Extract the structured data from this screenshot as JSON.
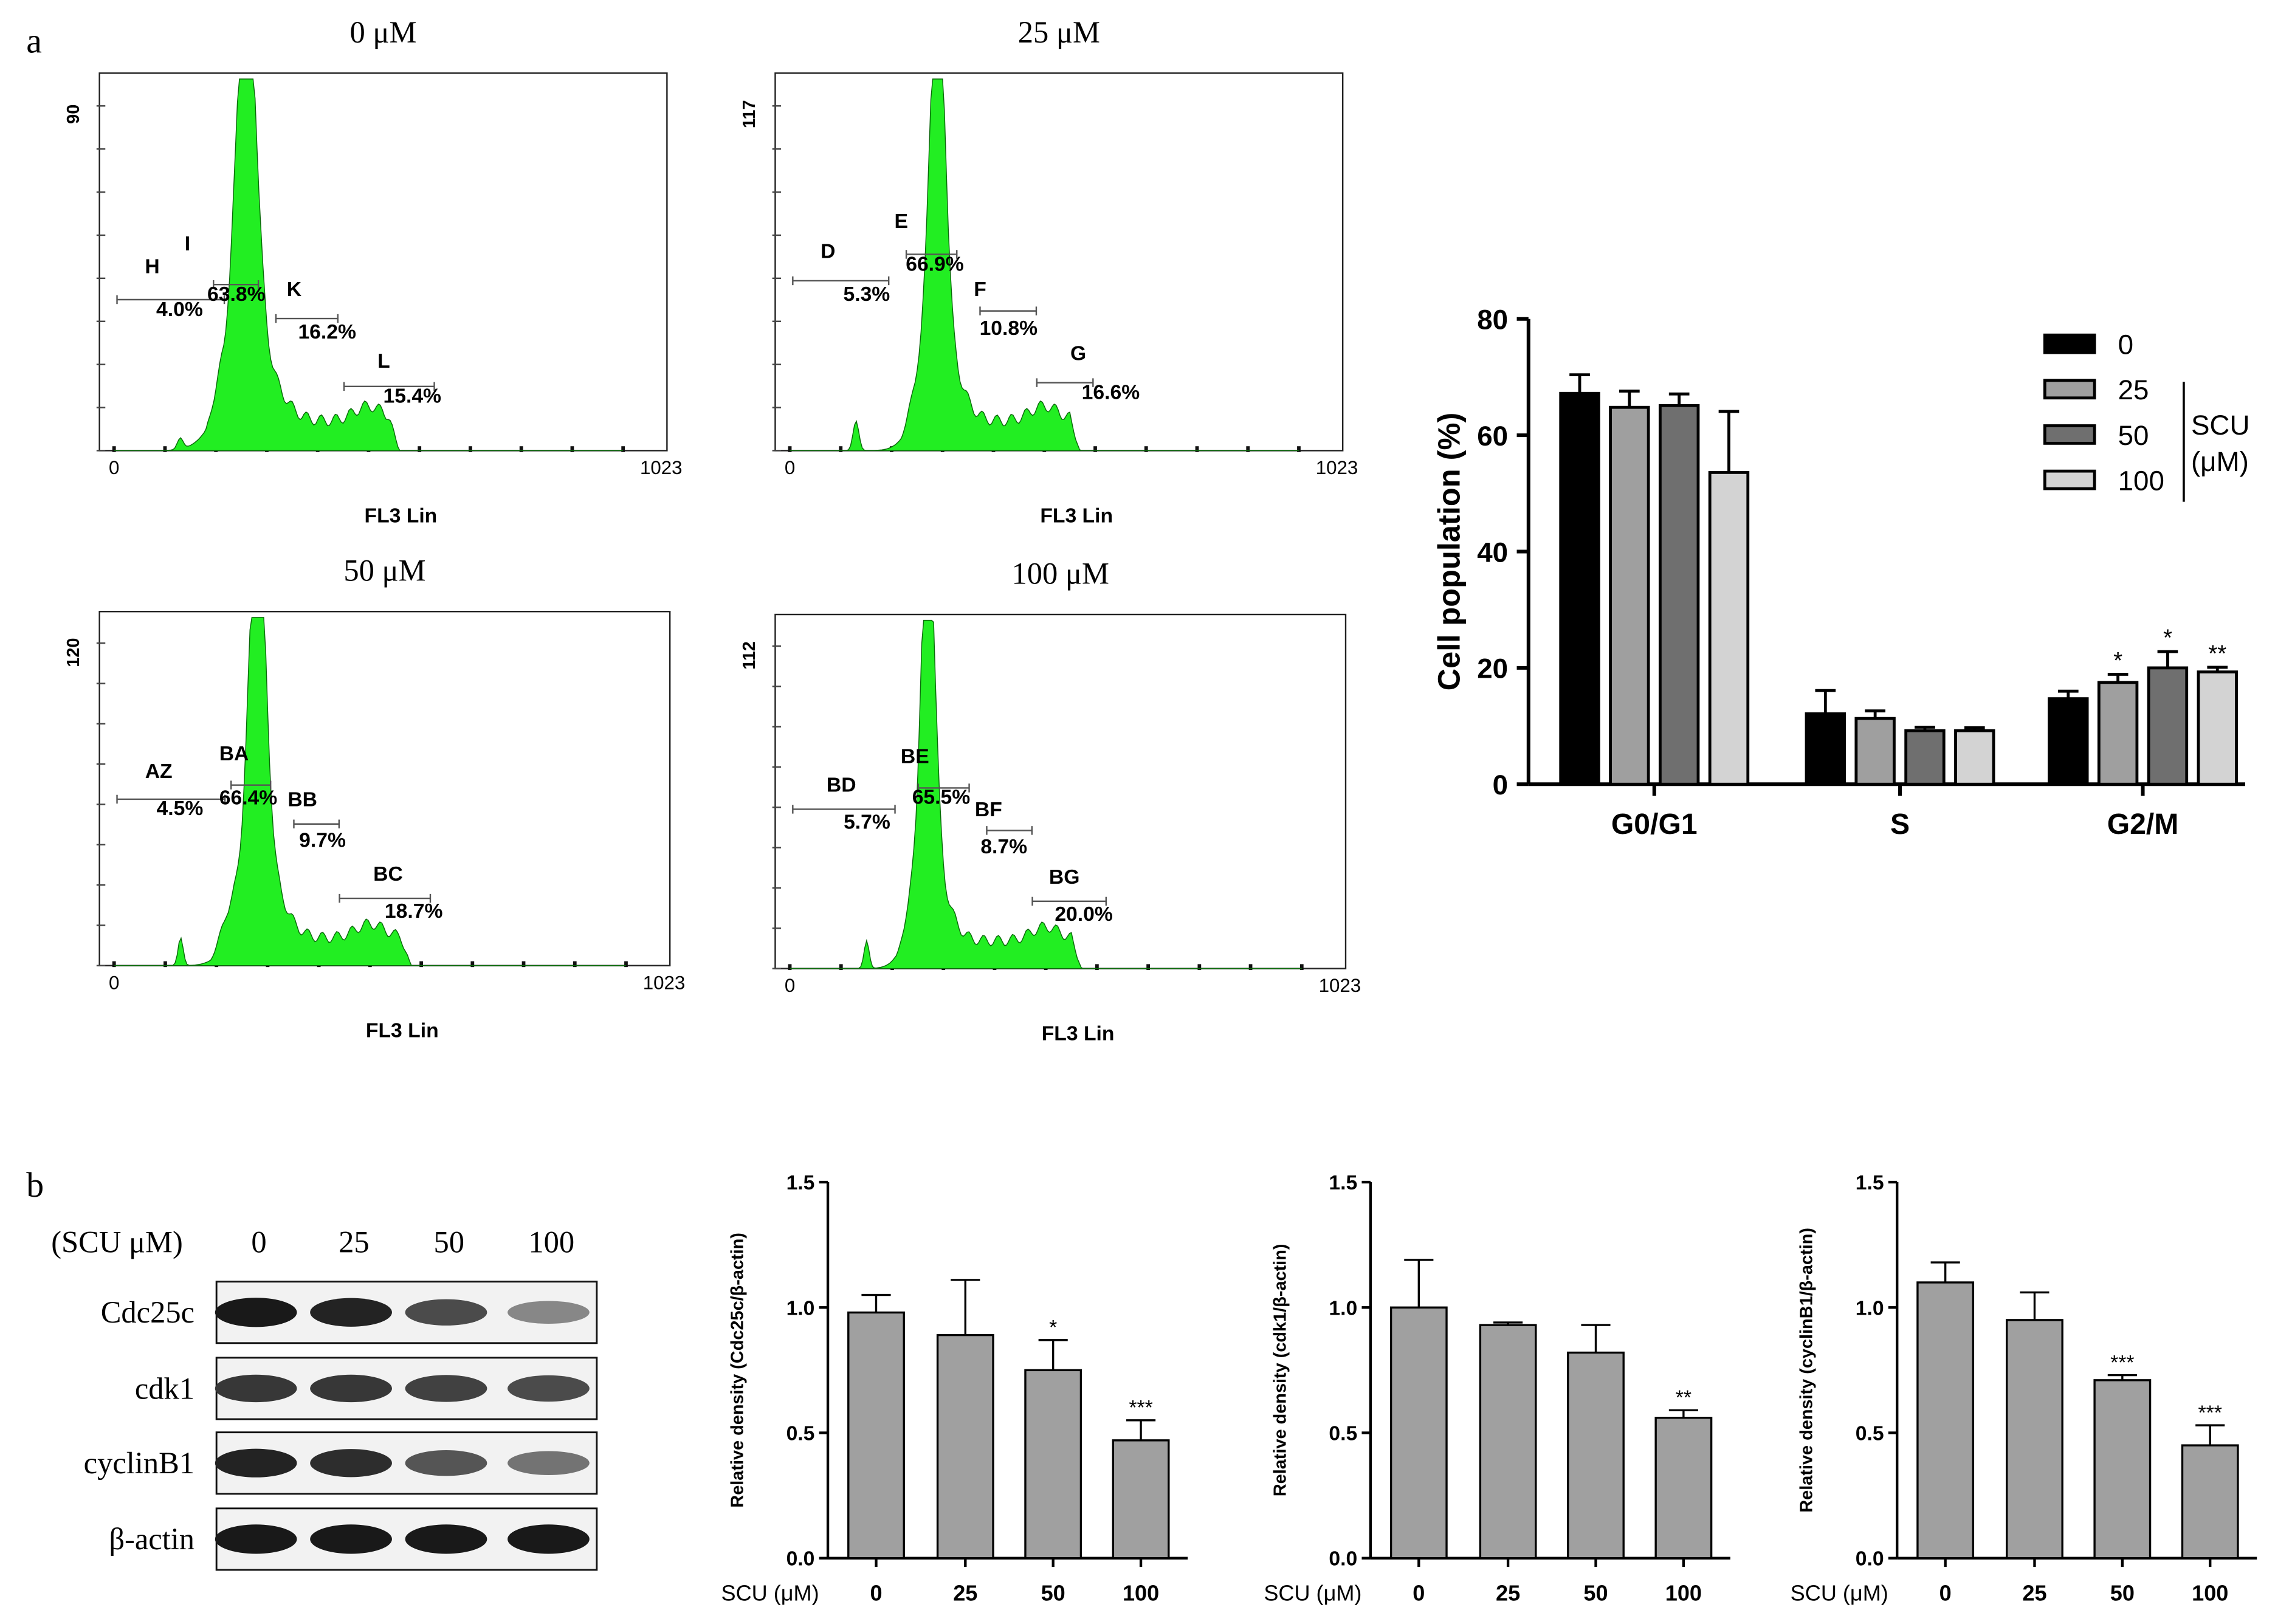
{
  "panel_labels": [
    "a",
    "b"
  ],
  "histograms": [
    {
      "title": "0 μM",
      "ymax_label": "90",
      "x_start": "0",
      "x_end": "1023",
      "xlabel": "FL3 Lin",
      "gates": [
        {
          "name": "H",
          "value": "4.0%"
        },
        {
          "name": "I",
          "value": "63.8%"
        },
        {
          "name": "K",
          "value": "16.2%"
        },
        {
          "name": "L",
          "value": "15.4%"
        }
      ]
    },
    {
      "title": "25 μM",
      "ymax_label": "117",
      "x_start": "0",
      "x_end": "1023",
      "xlabel": "FL3 Lin",
      "gates": [
        {
          "name": "D",
          "value": "5.3%"
        },
        {
          "name": "E",
          "value": "66.9%"
        },
        {
          "name": "F",
          "value": "10.8%"
        },
        {
          "name": "G",
          "value": "16.6%"
        }
      ]
    },
    {
      "title": "50 μM",
      "ymax_label": "120",
      "x_start": "0",
      "x_end": "1023",
      "xlabel": "FL3 Lin",
      "gates": [
        {
          "name": "AZ",
          "value": "4.5%"
        },
        {
          "name": "BA",
          "value": "66.4%"
        },
        {
          "name": "BB",
          "value": "9.7%"
        },
        {
          "name": "BC",
          "value": "18.7%"
        }
      ]
    },
    {
      "title": "100 μM",
      "ymax_label": "112",
      "x_start": "0",
      "x_end": "1023",
      "xlabel": "FL3 Lin",
      "gates": [
        {
          "name": "BD",
          "value": "5.7%"
        },
        {
          "name": "BE",
          "value": "65.5%"
        },
        {
          "name": "BF",
          "value": "8.7%"
        },
        {
          "name": "BG",
          "value": "20.0%"
        }
      ]
    }
  ],
  "blot": {
    "header_label": "(SCU μM)",
    "lanes": [
      "0",
      "25",
      "50",
      "100"
    ],
    "rows": [
      {
        "label": "Cdc25c",
        "intensity": [
          1.0,
          0.95,
          0.75,
          0.45
        ]
      },
      {
        "label": "cdk1",
        "intensity": [
          0.85,
          0.85,
          0.8,
          0.75
        ]
      },
      {
        "label": "cyclinB1",
        "intensity": [
          0.95,
          0.9,
          0.7,
          0.55
        ]
      },
      {
        "label": "β-actin",
        "intensity": [
          1.0,
          1.0,
          1.0,
          1.0
        ]
      }
    ]
  },
  "colors": {
    "histogram_fill": "#22ee22",
    "bar_black": "#000000",
    "bar_25": "#9f9f9f",
    "bar_50": "#6f6f6f",
    "bar_100": "#d3d3d3",
    "bar_b": "#a0a0a0"
  },
  "chart_data": [
    {
      "type": "bar",
      "categories": [
        "G0/G1",
        "S",
        "G2/M"
      ],
      "series": [
        {
          "name": "0",
          "values": [
            67.2,
            12.1,
            14.7
          ],
          "errors": [
            3.2,
            4.0,
            1.3
          ]
        },
        {
          "name": "25",
          "values": [
            64.8,
            11.3,
            17.5
          ],
          "errors": [
            2.8,
            1.3,
            1.4
          ]
        },
        {
          "name": "50",
          "values": [
            65.1,
            9.2,
            20.0
          ],
          "errors": [
            2.0,
            0.6,
            2.8
          ]
        },
        {
          "name": "100",
          "values": [
            53.6,
            9.2,
            19.3
          ],
          "errors": [
            10.5,
            0.5,
            0.8
          ]
        }
      ],
      "significance": [
        [
          "",
          "",
          "",
          ""
        ],
        [
          "",
          "",
          "",
          ""
        ],
        [
          "",
          "*",
          "*",
          "**"
        ]
      ],
      "ylabel": "Cell population (%)",
      "ylim": [
        0,
        80
      ],
      "yticks": [
        "0",
        "20",
        "40",
        "60",
        "80"
      ],
      "legend_group_label": [
        "SCU",
        "(μM)"
      ],
      "legend_position": "top-right"
    },
    {
      "type": "bar",
      "categories": [
        "0",
        "25",
        "50",
        "100"
      ],
      "values": [
        0.98,
        0.89,
        0.75,
        0.47
      ],
      "errors": [
        0.07,
        0.22,
        0.12,
        0.08
      ],
      "significance": [
        "",
        "",
        "*",
        "***"
      ],
      "xlabel": "SCU (μM)",
      "ylabel": "Relative density (Cdc25c/β-actin)",
      "ylim": [
        0,
        1.5
      ],
      "yticks": [
        "0.0",
        "0.5",
        "1.0",
        "1.5"
      ]
    },
    {
      "type": "bar",
      "categories": [
        "0",
        "25",
        "50",
        "100"
      ],
      "values": [
        1.0,
        0.93,
        0.82,
        0.56
      ],
      "errors": [
        0.19,
        0.01,
        0.11,
        0.03
      ],
      "significance": [
        "",
        "",
        "",
        "**"
      ],
      "xlabel": "SCU (μM)",
      "ylabel": "Relative density (cdk1/β-actin)",
      "ylim": [
        0,
        1.5
      ],
      "yticks": [
        "0.0",
        "0.5",
        "1.0",
        "1.5"
      ]
    },
    {
      "type": "bar",
      "categories": [
        "0",
        "25",
        "50",
        "100"
      ],
      "values": [
        1.1,
        0.95,
        0.71,
        0.45
      ],
      "errors": [
        0.08,
        0.11,
        0.02,
        0.08
      ],
      "significance": [
        "",
        "",
        "***",
        "***"
      ],
      "xlabel": "SCU (μM)",
      "ylabel": "Relative density (cyclinB1/β-actin)",
      "ylim": [
        0,
        1.5
      ],
      "yticks": [
        "0.0",
        "0.5",
        "1.0",
        "1.5"
      ]
    }
  ]
}
